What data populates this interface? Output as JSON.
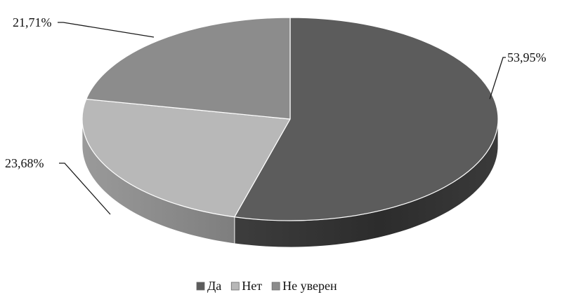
{
  "chart_data": {
    "type": "pie",
    "categories": [
      "Да",
      "Нет",
      "Не уверен"
    ],
    "values": [
      53.95,
      23.68,
      21.71
    ],
    "data_labels": [
      "53,95%",
      "23,68%",
      "21,71%"
    ],
    "title": "",
    "legend_position": "bottom",
    "style": "3d",
    "colors": {
      "Да": "#5c5c5c",
      "Нет": "#b8b8b8",
      "Не уверен": "#8c8c8c",
      "label_line": "#1a1a1a"
    }
  }
}
